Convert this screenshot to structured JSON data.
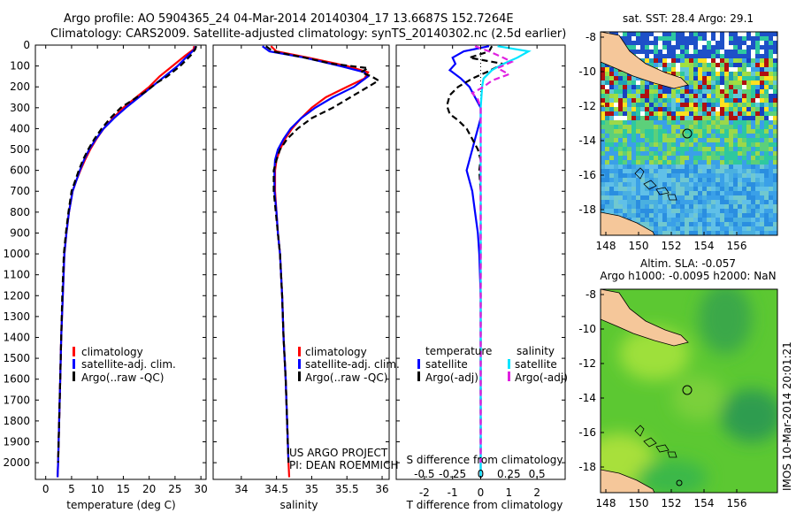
{
  "header": {
    "line1": "Argo profile: AO 5904365_24 04-Mar-2014 20140304_17 13.6687S 152.7264E",
    "line2": "Climatology: CARS2009. Satellite-adjusted climatology: synTS_20140302.nc (2.5d earlier)"
  },
  "depth_ticks": [
    0,
    100,
    200,
    300,
    400,
    500,
    600,
    700,
    800,
    900,
    1000,
    1100,
    1200,
    1300,
    1400,
    1500,
    1600,
    1700,
    1800,
    1900,
    2000
  ],
  "colors": {
    "climatology": "#ff0000",
    "satellite": "#0000ff",
    "argo": "#000000",
    "sal_sat": "#00e5ff",
    "sal_argo": "#e020e0",
    "land": "#f5c79a"
  },
  "panels": {
    "temperature": {
      "xlabel": "temperature (deg C)",
      "legend": [
        "climatology",
        "satellite-adj. clim.",
        "Argo(..raw -QC)"
      ]
    },
    "salinity": {
      "xlabel": "salinity",
      "legend": [
        "climatology",
        "satellite-adj. clim.",
        "Argo(..raw -QC)"
      ],
      "note1": "US ARGO PROJECT",
      "note2": "PI: DEAN ROEMMICH"
    },
    "difference": {
      "legend_t_head": "temperature",
      "legend_s_head": "salinity",
      "legend_t": [
        "satellite",
        "Argo(-adj)"
      ],
      "legend_s": [
        "satellite",
        "Argo(-adj)"
      ],
      "top_label": "S difference from climatology",
      "xlabel": "T difference from climatology"
    },
    "sst_map": {
      "title": "sat. SST: 28.4  Argo: 29.1"
    },
    "sla_map": {
      "title1": "Altim. SLA: -0.057",
      "title2": "Argo h1000: -0.0095 h2000: NaN"
    }
  },
  "stamp": "IMOS 10-Mar-2014 20:01:21",
  "map_axes": {
    "x_ticks": [
      "148",
      "150",
      "152",
      "154",
      "156"
    ],
    "y_ticks": [
      "-8",
      "-10",
      "-12",
      "-14",
      "-16",
      "-18"
    ]
  },
  "chart_data": [
    {
      "type": "line",
      "title": "",
      "xlabel": "temperature (deg C)",
      "ylabel": "",
      "xlim": [
        -2,
        31
      ],
      "ylim": [
        2080,
        0
      ],
      "x_ticks": [
        0,
        5,
        10,
        15,
        20,
        25,
        30
      ],
      "series": [
        {
          "name": "climatology",
          "color": "#ff0000",
          "points": [
            [
              28.7,
              5
            ],
            [
              28.6,
              20
            ],
            [
              27,
              50
            ],
            [
              24.5,
              100
            ],
            [
              22,
              150
            ],
            [
              20,
              200
            ],
            [
              17.5,
              250
            ],
            [
              15,
              300
            ],
            [
              13,
              350
            ],
            [
              11.2,
              400
            ],
            [
              9.8,
              450
            ],
            [
              8.6,
              500
            ],
            [
              7.6,
              550
            ],
            [
              6.7,
              600
            ],
            [
              5.9,
              650
            ],
            [
              5.2,
              700
            ],
            [
              4.5,
              800
            ],
            [
              4,
              900
            ],
            [
              3.6,
              1000
            ],
            [
              3.3,
              1200
            ],
            [
              3,
              1400
            ],
            [
              2.8,
              1600
            ],
            [
              2.6,
              1800
            ],
            [
              2.4,
              2000
            ],
            [
              2.3,
              2070
            ]
          ]
        },
        {
          "name": "satellite-adj. clim.",
          "color": "#0000ff",
          "points": [
            [
              29,
              5
            ],
            [
              28.8,
              20
            ],
            [
              27.5,
              50
            ],
            [
              25.5,
              100
            ],
            [
              23,
              150
            ],
            [
              20.5,
              200
            ],
            [
              18,
              250
            ],
            [
              15.5,
              300
            ],
            [
              13.2,
              350
            ],
            [
              11.2,
              400
            ],
            [
              9.7,
              450
            ],
            [
              8.4,
              500
            ],
            [
              7.4,
              550
            ],
            [
              6.6,
              600
            ],
            [
              5.9,
              650
            ],
            [
              5.2,
              700
            ],
            [
              4.5,
              800
            ],
            [
              4,
              900
            ],
            [
              3.6,
              1000
            ],
            [
              3.3,
              1200
            ],
            [
              3,
              1400
            ],
            [
              2.8,
              1600
            ],
            [
              2.6,
              1800
            ],
            [
              2.4,
              2000
            ],
            [
              2.3,
              2070
            ]
          ]
        },
        {
          "name": "Argo(..raw -QC)",
          "color": "#000000",
          "dash": true,
          "points": [
            [
              29.1,
              5
            ],
            [
              28.9,
              20
            ],
            [
              28,
              50
            ],
            [
              26,
              100
            ],
            [
              23.5,
              150
            ],
            [
              21.5,
              180
            ],
            [
              19.5,
              220
            ],
            [
              17,
              260
            ],
            [
              14.5,
              300
            ],
            [
              12.5,
              350
            ],
            [
              10.8,
              400
            ],
            [
              9.4,
              450
            ],
            [
              8.2,
              500
            ],
            [
              7.2,
              550
            ],
            [
              6.4,
              600
            ],
            [
              5.7,
              650
            ],
            [
              5,
              700
            ],
            [
              4.4,
              800
            ],
            [
              3.9,
              900
            ],
            [
              3.5,
              1000
            ],
            [
              3.2,
              1200
            ],
            [
              3,
              1400
            ],
            [
              2.8,
              1600
            ],
            [
              2.6,
              1800
            ],
            [
              2.4,
              2000
            ]
          ]
        }
      ]
    },
    {
      "type": "line",
      "title": "",
      "xlabel": "salinity",
      "ylabel": "",
      "xlim": [
        33.6,
        36.1
      ],
      "ylim": [
        2080,
        0
      ],
      "x_ticks": [
        34,
        34.5,
        35,
        35.5,
        36
      ],
      "series": [
        {
          "name": "climatology",
          "color": "#ff0000",
          "points": [
            [
              34.42,
              5
            ],
            [
              34.5,
              30
            ],
            [
              34.95,
              60
            ],
            [
              35.5,
              100
            ],
            [
              35.8,
              130
            ],
            [
              35.75,
              160
            ],
            [
              35.5,
              200
            ],
            [
              35.2,
              250
            ],
            [
              35,
              300
            ],
            [
              34.85,
              350
            ],
            [
              34.72,
              400
            ],
            [
              34.62,
              450
            ],
            [
              34.55,
              500
            ],
            [
              34.5,
              550
            ],
            [
              34.48,
              600
            ],
            [
              34.48,
              700
            ],
            [
              34.5,
              800
            ],
            [
              34.52,
              900
            ],
            [
              34.55,
              1000
            ],
            [
              34.58,
              1200
            ],
            [
              34.6,
              1400
            ],
            [
              34.63,
              1600
            ],
            [
              34.65,
              1800
            ],
            [
              34.67,
              2000
            ],
            [
              34.68,
              2070
            ]
          ]
        },
        {
          "name": "satellite-adj. clim.",
          "color": "#0000ff",
          "points": [
            [
              34.3,
              5
            ],
            [
              34.4,
              30
            ],
            [
              34.9,
              60
            ],
            [
              35.4,
              100
            ],
            [
              35.75,
              130
            ],
            [
              35.8,
              150
            ],
            [
              35.6,
              200
            ],
            [
              35.3,
              250
            ],
            [
              35.05,
              300
            ],
            [
              34.85,
              350
            ],
            [
              34.7,
              400
            ],
            [
              34.6,
              450
            ],
            [
              34.52,
              500
            ],
            [
              34.48,
              550
            ],
            [
              34.47,
              600
            ],
            [
              34.47,
              700
            ],
            [
              34.5,
              800
            ],
            [
              34.52,
              900
            ],
            [
              34.55,
              1000
            ],
            [
              34.58,
              1200
            ],
            [
              34.6,
              1400
            ],
            [
              34.63,
              1600
            ],
            [
              34.65,
              1800
            ],
            [
              34.67,
              2000
            ]
          ]
        },
        {
          "name": "Argo(..raw -QC)",
          "color": "#000000",
          "dash": true,
          "points": [
            [
              34.35,
              5
            ],
            [
              34.45,
              30
            ],
            [
              34.9,
              60
            ],
            [
              35.3,
              90
            ],
            [
              35.8,
              110
            ],
            [
              35.7,
              130
            ],
            [
              35.85,
              150
            ],
            [
              35.95,
              170
            ],
            [
              35.8,
              200
            ],
            [
              35.55,
              250
            ],
            [
              35.3,
              300
            ],
            [
              35,
              350
            ],
            [
              34.8,
              400
            ],
            [
              34.65,
              450
            ],
            [
              34.55,
              500
            ],
            [
              34.5,
              550
            ],
            [
              34.46,
              600
            ],
            [
              34.46,
              700
            ],
            [
              34.49,
              800
            ],
            [
              34.52,
              900
            ],
            [
              34.55,
              1000
            ],
            [
              34.58,
              1200
            ],
            [
              34.6,
              1400
            ],
            [
              34.63,
              1600
            ],
            [
              34.65,
              1800
            ],
            [
              34.67,
              2000
            ]
          ]
        }
      ]
    },
    {
      "type": "line",
      "title": "",
      "xlabel": "T difference from climatology",
      "ylabel": "",
      "xlim": [
        -3,
        3
      ],
      "ylim": [
        2080,
        0
      ],
      "x_ticks": [
        -2,
        -1,
        0,
        1,
        2
      ],
      "x2_label": "S difference from climatology",
      "x2_ticks": [
        {
          "label": "-0.5",
          "at": -2
        },
        {
          "label": "-0.25",
          "at": -1
        },
        {
          "label": "0",
          "at": 0
        },
        {
          "label": "0.25",
          "at": 1
        },
        {
          "label": "0.5",
          "at": 2
        }
      ],
      "series": [
        {
          "name": "temperature satellite",
          "color": "#0000ff",
          "points": [
            [
              0.3,
              5
            ],
            [
              -0.6,
              30
            ],
            [
              -1,
              60
            ],
            [
              -0.9,
              90
            ],
            [
              -1.1,
              120
            ],
            [
              -0.7,
              160
            ],
            [
              -0.4,
              200
            ],
            [
              -0.2,
              250
            ],
            [
              0,
              300
            ],
            [
              0,
              350
            ],
            [
              -0.1,
              400
            ],
            [
              -0.2,
              450
            ],
            [
              -0.3,
              500
            ],
            [
              -0.4,
              550
            ],
            [
              -0.5,
              600
            ],
            [
              -0.4,
              650
            ],
            [
              -0.3,
              700
            ],
            [
              -0.2,
              800
            ],
            [
              -0.1,
              900
            ],
            [
              -0.05,
              1000
            ],
            [
              0,
              1200
            ],
            [
              0,
              2070
            ]
          ]
        },
        {
          "name": "temperature Argo(-adj)",
          "color": "#000000",
          "dash": true,
          "points": [
            [
              0.4,
              5
            ],
            [
              0.3,
              30
            ],
            [
              -0.4,
              60
            ],
            [
              0.8,
              90
            ],
            [
              0.2,
              130
            ],
            [
              -0.3,
              160
            ],
            [
              -0.8,
              200
            ],
            [
              -1.1,
              240
            ],
            [
              -1.2,
              290
            ],
            [
              -1.1,
              330
            ],
            [
              -0.8,
              360
            ],
            [
              -0.5,
              400
            ],
            [
              -0.3,
              450
            ],
            [
              -0.1,
              500
            ],
            [
              0,
              550
            ],
            [
              -0.05,
              600
            ],
            [
              0,
              700
            ],
            [
              0,
              900
            ],
            [
              0,
              1100
            ],
            [
              0,
              2000
            ]
          ]
        },
        {
          "name": "salinity satellite",
          "color": "#00e5ff",
          "points": [
            [
              0.6,
              5
            ],
            [
              1.7,
              30
            ],
            [
              1.3,
              60
            ],
            [
              0.8,
              90
            ],
            [
              0.4,
              120
            ],
            [
              0.1,
              160
            ],
            [
              0.05,
              200
            ],
            [
              0,
              300
            ],
            [
              0,
              500
            ],
            [
              0,
              700
            ],
            [
              0,
              1000
            ],
            [
              0,
              2070
            ]
          ]
        },
        {
          "name": "salinity Argo(-adj)",
          "color": "#e020e0",
          "dash": true,
          "points": [
            [
              -0.2,
              5
            ],
            [
              0.3,
              30
            ],
            [
              0.8,
              60
            ],
            [
              1.1,
              80
            ],
            [
              0.6,
              110
            ],
            [
              1,
              140
            ],
            [
              0.4,
              170
            ],
            [
              0.1,
              200
            ],
            [
              -0.3,
              230
            ],
            [
              -0.1,
              260
            ],
            [
              0,
              300
            ],
            [
              0,
              500
            ],
            [
              0,
              700
            ],
            [
              0,
              1000
            ],
            [
              0,
              2000
            ]
          ]
        }
      ]
    }
  ]
}
